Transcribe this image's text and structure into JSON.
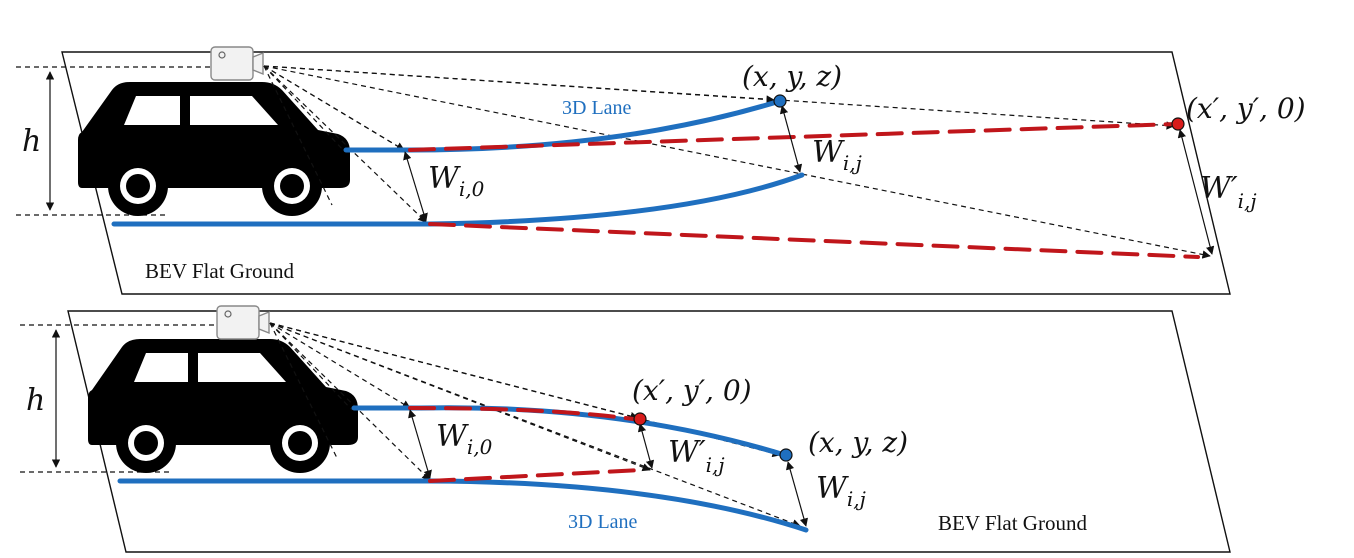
{
  "colors": {
    "lane_blue": "#1f6fbf",
    "projected_red": "#c0161b",
    "ray_black": "#111111",
    "car_black": "#000000",
    "point_blue": "#1f6fbf",
    "point_red": "#d81b1b",
    "camera_body": "#f2f2f2"
  },
  "icons": {
    "car": "car-icon",
    "camera": "camera-icon"
  },
  "top_panel": {
    "ground_label": "BEV Flat Ground",
    "lane_label": "3D Lane",
    "height_label": "h",
    "point_3d_label": "(x, y, z)",
    "point_projected_label": "(x′, y′, 0)",
    "width_start_label": {
      "base": "W",
      "sub": "i,0"
    },
    "width_3d_label": {
      "base": "W",
      "sub": "i,j"
    },
    "width_projected_label": {
      "base": "W′",
      "sub": "i,j"
    }
  },
  "bottom_panel": {
    "ground_label": "BEV Flat Ground",
    "lane_label": "3D Lane",
    "height_label": "h",
    "point_3d_label": "(x, y, z)",
    "point_projected_label": "(x′, y′, 0)",
    "width_start_label": {
      "base": "W",
      "sub": "i,0"
    },
    "width_3d_label": {
      "base": "W",
      "sub": "i,j"
    },
    "width_projected_label": {
      "base": "W′",
      "sub": "i,j"
    }
  }
}
